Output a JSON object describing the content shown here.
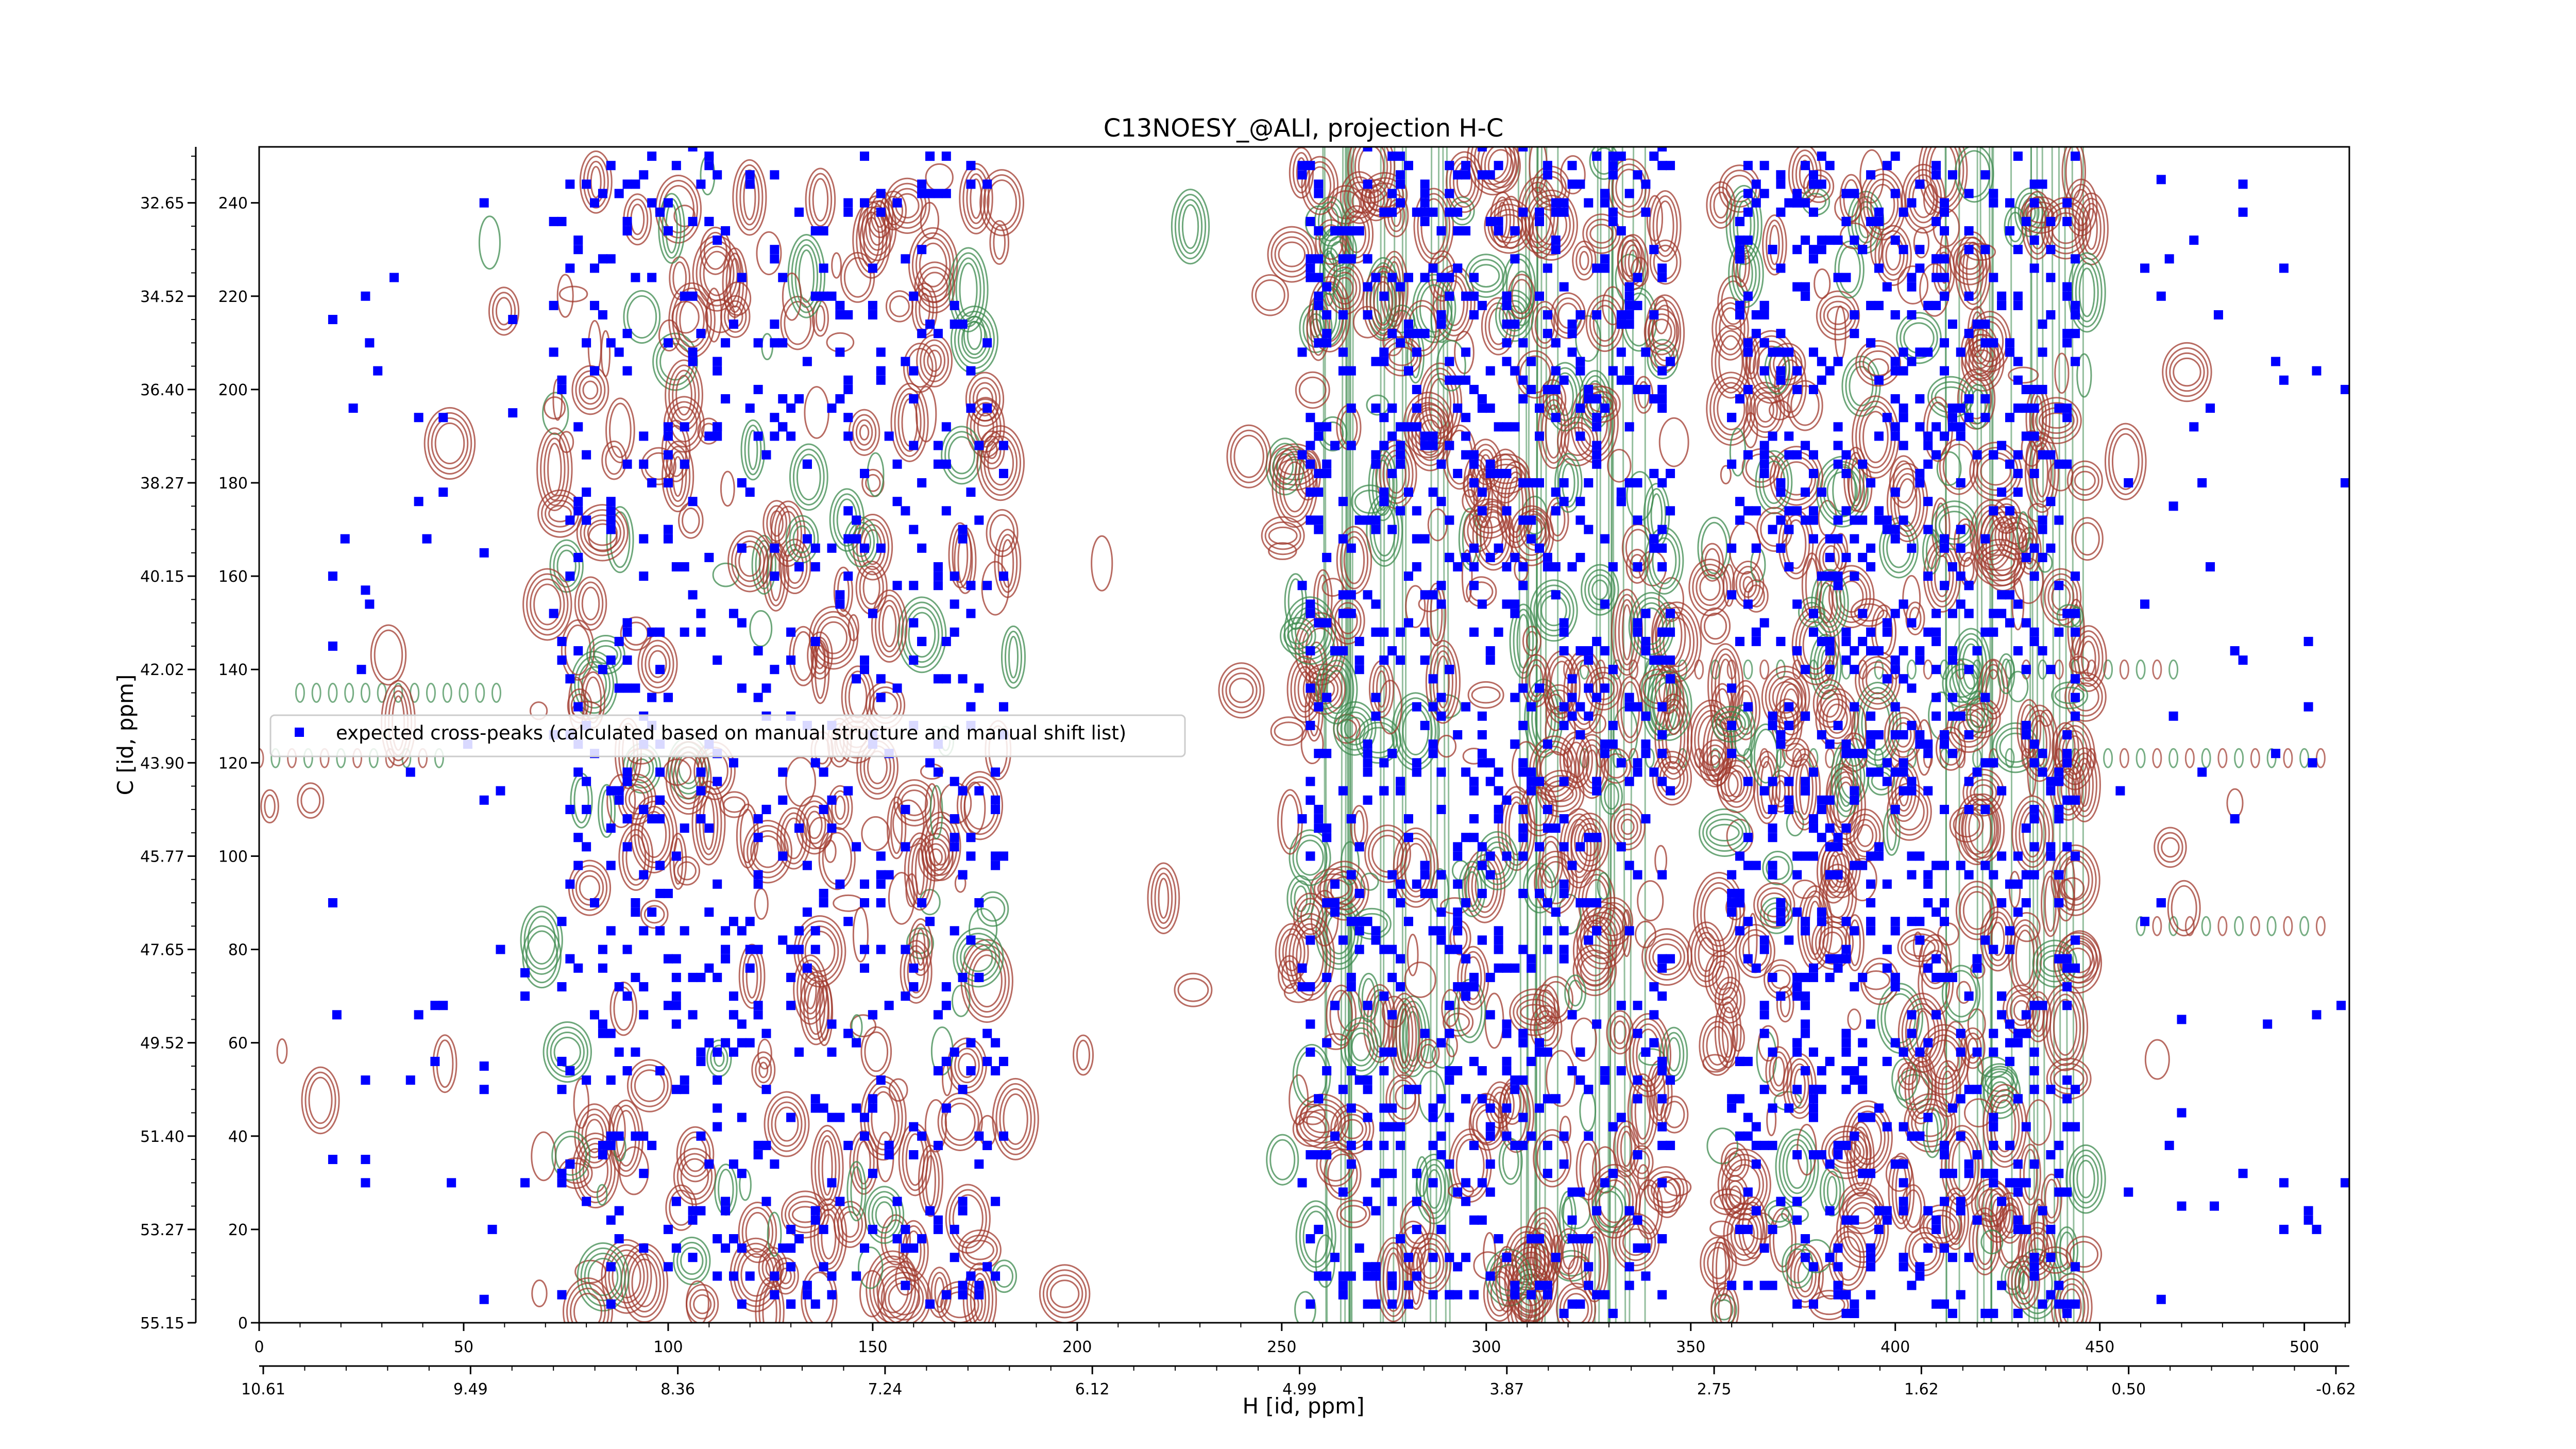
{
  "chart_data": {
    "type": "scatter",
    "title": "C13NOESY_@ALI, projection H-C",
    "xlabel": "H [id, ppm]",
    "ylabel": "C [id, ppm]",
    "x_index_ticks": [
      "0",
      "50",
      "100",
      "150",
      "200",
      "250",
      "300",
      "350",
      "400",
      "450",
      "500"
    ],
    "x_index_values": [
      0,
      50,
      100,
      150,
      200,
      250,
      300,
      350,
      400,
      450,
      500
    ],
    "x_ppm_ticks": [
      "10.61",
      "9.49",
      "8.36",
      "7.24",
      "6.12",
      "4.99",
      "3.87",
      "2.75",
      "1.62",
      "0.50",
      "-0.62"
    ],
    "y_index_ticks": [
      "0",
      "20",
      "40",
      "60",
      "80",
      "100",
      "120",
      "140",
      "160",
      "180",
      "200",
      "220",
      "240"
    ],
    "y_index_values": [
      0,
      20,
      40,
      60,
      80,
      100,
      120,
      140,
      160,
      180,
      200,
      220,
      240
    ],
    "y_ppm_ticks": [
      "55.15",
      "53.27",
      "51.40",
      "49.52",
      "47.65",
      "45.77",
      "43.90",
      "42.02",
      "40.15",
      "38.27",
      "36.40",
      "34.52",
      "32.65"
    ],
    "xlim": [
      0,
      511
    ],
    "ylim": [
      0,
      252
    ],
    "legend": {
      "label": "expected cross-peaks (calculated based on manual structure and manual shift list)",
      "placement": "center-left"
    },
    "colors": {
      "peaks": "#0000ff",
      "positive_contours": "#a0392e",
      "negative_contours": "#3c8a4e"
    },
    "series": [
      {
        "name": "expected cross-peaks (calculated based on manual structure and manual shift list)",
        "regions": [
          {
            "x": [
              72,
              183
            ],
            "y": [
              2,
              252
            ],
            "n": 650
          },
          {
            "x": [
              255,
              345
            ],
            "y": [
              2,
              252
            ],
            "n": 900
          },
          {
            "x": [
              360,
              445
            ],
            "y": [
              2,
              252
            ],
            "n": 900
          },
          {
            "x": [
              15,
              60
            ],
            "y": [
              20,
              230
            ],
            "n": 25
          },
          {
            "x": [
              455,
              511
            ],
            "y": [
              20,
              250
            ],
            "n": 35
          }
        ],
        "points": [
          [
            18,
            160
          ],
          [
            18,
            145
          ],
          [
            18,
            90
          ],
          [
            18,
            35
          ],
          [
            18,
            215
          ],
          [
            26,
            220
          ],
          [
            26,
            157
          ],
          [
            26,
            52
          ],
          [
            26,
            35
          ],
          [
            26,
            30
          ],
          [
            55,
            240
          ],
          [
            55,
            165
          ],
          [
            55,
            55
          ],
          [
            55,
            50
          ],
          [
            55,
            5
          ],
          [
            62,
            215
          ],
          [
            62,
            195
          ],
          [
            65,
            70
          ],
          [
            65,
            30
          ],
          [
            65,
            75
          ],
          [
            465,
            245
          ],
          [
            465,
            220
          ],
          [
            465,
            90
          ],
          [
            465,
            5
          ],
          [
            468,
            130
          ],
          [
            468,
            175
          ],
          [
            470,
            65
          ],
          [
            470,
            45
          ],
          [
            470,
            25
          ],
          [
            478,
            25
          ],
          [
            495,
            30
          ],
          [
            495,
            20
          ],
          [
            502,
            120
          ],
          [
            510,
            180
          ],
          [
            510,
            200
          ],
          [
            510,
            30
          ],
          [
            512,
            110
          ]
        ]
      }
    ]
  }
}
